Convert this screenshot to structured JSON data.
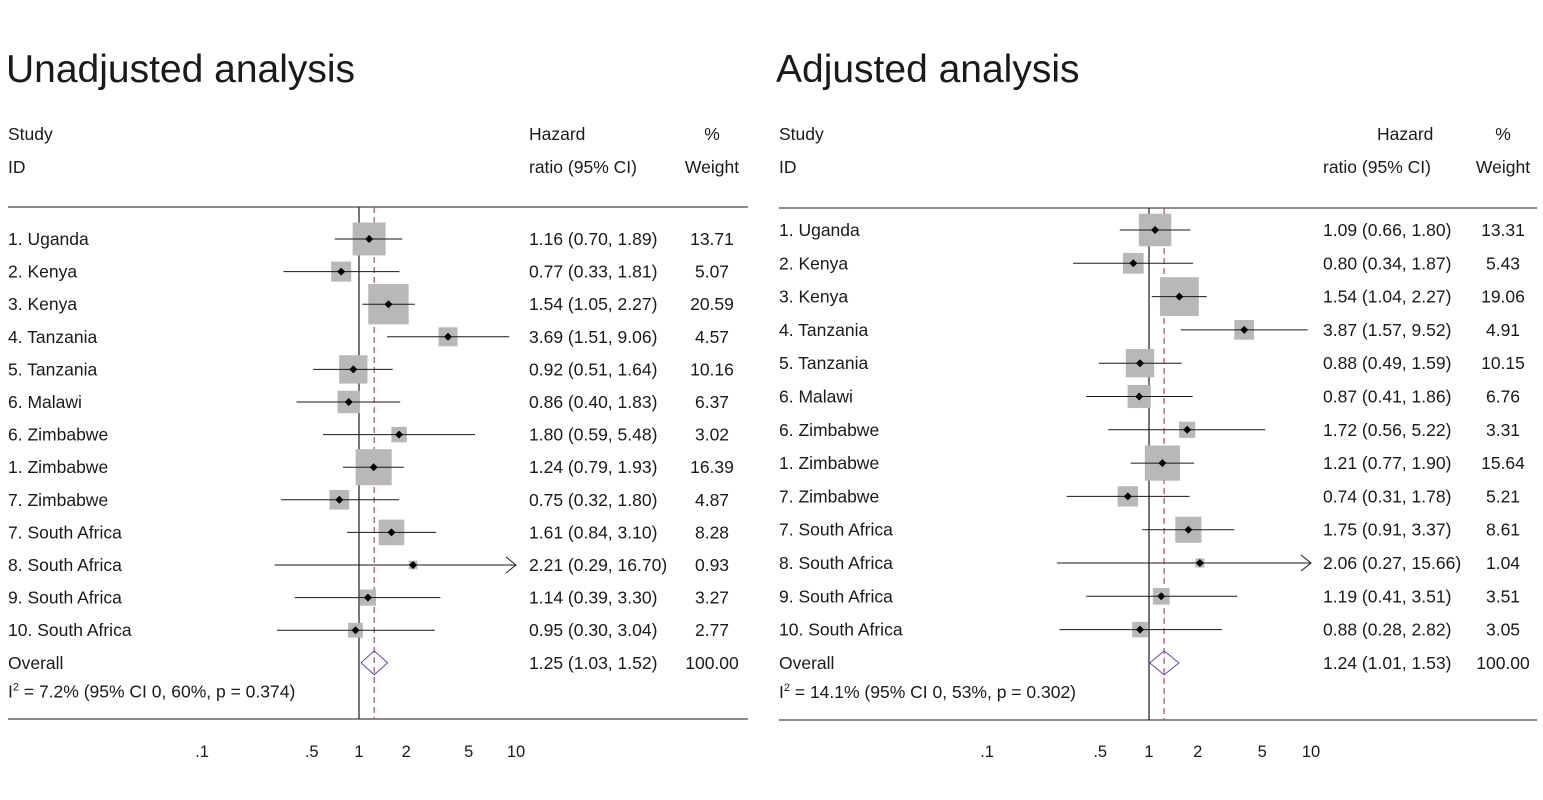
{
  "colors": {
    "box": "#b8b8b8",
    "ci_line": "#1a1a1a",
    "point": "#000000",
    "null_line": "#1a1a1a",
    "overall_line": "#a0506e",
    "diamond": "#5b4fa8"
  },
  "chart_data": [
    {
      "type": "forest",
      "title": "Unadjusted analysis",
      "columns": {
        "study": [
          "Study",
          "ID"
        ],
        "hr": [
          "Hazard",
          "ratio (95% CI)"
        ],
        "weight": [
          "%",
          "Weight"
        ]
      },
      "x_scale": "log",
      "xlim": [
        0.1,
        10
      ],
      "x_ticks": [
        ".1",
        ".5",
        "1",
        "2",
        "5",
        "10"
      ],
      "null_value": 1,
      "studies": [
        {
          "label": "1. Uganda",
          "hr": 1.16,
          "lo": 0.7,
          "hi": 1.89,
          "weight": 13.71,
          "hr_text": "1.16 (0.70, 1.89)",
          "weight_text": "13.71"
        },
        {
          "label": "2. Kenya",
          "hr": 0.77,
          "lo": 0.33,
          "hi": 1.81,
          "weight": 5.07,
          "hr_text": "0.77 (0.33, 1.81)",
          "weight_text": "5.07"
        },
        {
          "label": "3. Kenya",
          "hr": 1.54,
          "lo": 1.05,
          "hi": 2.27,
          "weight": 20.59,
          "hr_text": "1.54 (1.05, 2.27)",
          "weight_text": "20.59"
        },
        {
          "label": "4. Tanzania",
          "hr": 3.69,
          "lo": 1.51,
          "hi": 9.06,
          "weight": 4.57,
          "hr_text": "3.69 (1.51, 9.06)",
          "weight_text": "4.57"
        },
        {
          "label": "5. Tanzania",
          "hr": 0.92,
          "lo": 0.51,
          "hi": 1.64,
          "weight": 10.16,
          "hr_text": "0.92 (0.51, 1.64)",
          "weight_text": "10.16"
        },
        {
          "label": "6. Malawi",
          "hr": 0.86,
          "lo": 0.4,
          "hi": 1.83,
          "weight": 6.37,
          "hr_text": "0.86 (0.40, 1.83)",
          "weight_text": "6.37"
        },
        {
          "label": "6. Zimbabwe",
          "hr": 1.8,
          "lo": 0.59,
          "hi": 5.48,
          "weight": 3.02,
          "hr_text": "1.80 (0.59, 5.48)",
          "weight_text": "3.02"
        },
        {
          "label": "1. Zimbabwe",
          "hr": 1.24,
          "lo": 0.79,
          "hi": 1.93,
          "weight": 16.39,
          "hr_text": "1.24 (0.79, 1.93)",
          "weight_text": "16.39"
        },
        {
          "label": "7. Zimbabwe",
          "hr": 0.75,
          "lo": 0.32,
          "hi": 1.8,
          "weight": 4.87,
          "hr_text": "0.75 (0.32, 1.80)",
          "weight_text": "4.87"
        },
        {
          "label": "7. South Africa",
          "hr": 1.61,
          "lo": 0.84,
          "hi": 3.1,
          "weight": 8.28,
          "hr_text": "1.61 (0.84, 3.10)",
          "weight_text": "8.28"
        },
        {
          "label": "8. South Africa",
          "hr": 2.21,
          "lo": 0.29,
          "hi": 16.7,
          "weight": 0.93,
          "hr_text": "2.21 (0.29, 16.70)",
          "weight_text": "0.93"
        },
        {
          "label": "9. South Africa",
          "hr": 1.14,
          "lo": 0.39,
          "hi": 3.3,
          "weight": 3.27,
          "hr_text": "1.14 (0.39, 3.30)",
          "weight_text": "3.27"
        },
        {
          "label": "10. South Africa",
          "hr": 0.95,
          "lo": 0.3,
          "hi": 3.04,
          "weight": 2.77,
          "hr_text": "0.95 (0.30, 3.04)",
          "weight_text": "2.77"
        }
      ],
      "overall": {
        "label": "Overall",
        "hr": 1.25,
        "lo": 1.03,
        "hi": 1.52,
        "weight": 100.0,
        "hr_text": "1.25 (1.03, 1.52)",
        "weight_text": "100.00"
      },
      "heterogeneity": {
        "pre": "I",
        "sup": "2",
        "post": " = 7.2% (95% CI 0, 60%, p = 0.374)"
      }
    },
    {
      "type": "forest",
      "title": "Adjusted analysis",
      "columns": {
        "study": [
          "Study",
          "ID"
        ],
        "hr": [
          "Hazard",
          "ratio (95% CI)"
        ],
        "weight": [
          "%",
          "Weight"
        ]
      },
      "x_scale": "log",
      "xlim": [
        0.1,
        10
      ],
      "x_ticks": [
        ".1",
        ".5",
        "1",
        "2",
        "5",
        "10"
      ],
      "null_value": 1,
      "studies": [
        {
          "label": "1. Uganda",
          "hr": 1.09,
          "lo": 0.66,
          "hi": 1.8,
          "weight": 13.31,
          "hr_text": "1.09 (0.66, 1.80)",
          "weight_text": "13.31"
        },
        {
          "label": "2. Kenya",
          "hr": 0.8,
          "lo": 0.34,
          "hi": 1.87,
          "weight": 5.43,
          "hr_text": "0.80 (0.34, 1.87)",
          "weight_text": "5.43"
        },
        {
          "label": "3. Kenya",
          "hr": 1.54,
          "lo": 1.04,
          "hi": 2.27,
          "weight": 19.06,
          "hr_text": "1.54 (1.04, 2.27)",
          "weight_text": "19.06"
        },
        {
          "label": "4. Tanzania",
          "hr": 3.87,
          "lo": 1.57,
          "hi": 9.52,
          "weight": 4.91,
          "hr_text": "3.87 (1.57, 9.52)",
          "weight_text": "4.91"
        },
        {
          "label": "5. Tanzania",
          "hr": 0.88,
          "lo": 0.49,
          "hi": 1.59,
          "weight": 10.15,
          "hr_text": "0.88 (0.49, 1.59)",
          "weight_text": "10.15"
        },
        {
          "label": "6. Malawi",
          "hr": 0.87,
          "lo": 0.41,
          "hi": 1.86,
          "weight": 6.76,
          "hr_text": "0.87 (0.41, 1.86)",
          "weight_text": "6.76"
        },
        {
          "label": "6. Zimbabwe",
          "hr": 1.72,
          "lo": 0.56,
          "hi": 5.22,
          "weight": 3.31,
          "hr_text": "1.72 (0.56, 5.22)",
          "weight_text": "3.31"
        },
        {
          "label": "1. Zimbabwe",
          "hr": 1.21,
          "lo": 0.77,
          "hi": 1.9,
          "weight": 15.64,
          "hr_text": "1.21 (0.77, 1.90)",
          "weight_text": "15.64"
        },
        {
          "label": "7. Zimbabwe",
          "hr": 0.74,
          "lo": 0.31,
          "hi": 1.78,
          "weight": 5.21,
          "hr_text": "0.74 (0.31, 1.78)",
          "weight_text": "5.21"
        },
        {
          "label": "7. South Africa",
          "hr": 1.75,
          "lo": 0.91,
          "hi": 3.37,
          "weight": 8.61,
          "hr_text": "1.75 (0.91, 3.37)",
          "weight_text": "8.61"
        },
        {
          "label": "8. South Africa",
          "hr": 2.06,
          "lo": 0.27,
          "hi": 15.66,
          "weight": 1.04,
          "hr_text": "2.06 (0.27, 15.66)",
          "weight_text": "1.04"
        },
        {
          "label": "9. South Africa",
          "hr": 1.19,
          "lo": 0.41,
          "hi": 3.51,
          "weight": 3.51,
          "hr_text": "1.19 (0.41, 3.51)",
          "weight_text": "3.51"
        },
        {
          "label": "10. South Africa",
          "hr": 0.88,
          "lo": 0.28,
          "hi": 2.82,
          "weight": 3.05,
          "hr_text": "0.88 (0.28, 2.82)",
          "weight_text": "3.05"
        }
      ],
      "overall": {
        "label": "Overall",
        "hr": 1.24,
        "lo": 1.01,
        "hi": 1.53,
        "weight": 100.0,
        "hr_text": "1.24 (1.01, 1.53)",
        "weight_text": "100.00"
      },
      "heterogeneity": {
        "pre": "I",
        "sup": "2",
        "post": " = 14.1% (95% CI 0, 53%, p = 0.302)"
      }
    }
  ]
}
